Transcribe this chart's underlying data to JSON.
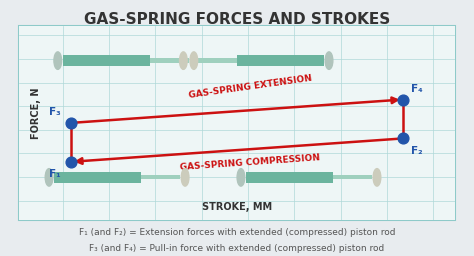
{
  "title": "GAS-SPRING FORCES AND STROKES",
  "title_fontsize": 11,
  "background_outer": "#e8ecef",
  "background_inner": "#eef6f6",
  "border_color": "#8ecac9",
  "grid_color": "#b0d8d8",
  "ylabel": "FORCE, N",
  "xlabel": "STROKE, MM",
  "label_fontsize": 7,
  "points": {
    "F1": [
      0.12,
      0.3
    ],
    "F2": [
      0.88,
      0.42
    ],
    "F3": [
      0.12,
      0.5
    ],
    "F4": [
      0.88,
      0.62
    ]
  },
  "point_color": "#2255aa",
  "point_size": 60,
  "line_color_extension": "#cc1111",
  "line_color_compression": "#cc1111",
  "arrow_color": "#cc1111",
  "extension_label": "GAS-SPRING EXTENSION",
  "compression_label": "GAS-SPRING COMPRESSION",
  "annotation_label_fontsize": 6.5,
  "annotation_color": "#cc1111",
  "footnote1": "F₁ (and F₂) = Extension forces with extended (compressed) piston rod",
  "footnote2": "F₃ (and F₄) = Pull-in force with extended (compressed) piston rod",
  "footnote_fontsize": 6.5,
  "footnote_color": "#555555",
  "gas_spring_color_body": "#6ab89e",
  "gas_spring_color_rod": "#8ecfc0",
  "gas_spring_color_end_left": "#b0c0c0",
  "gas_spring_color_end_right": "#d4d0bc"
}
